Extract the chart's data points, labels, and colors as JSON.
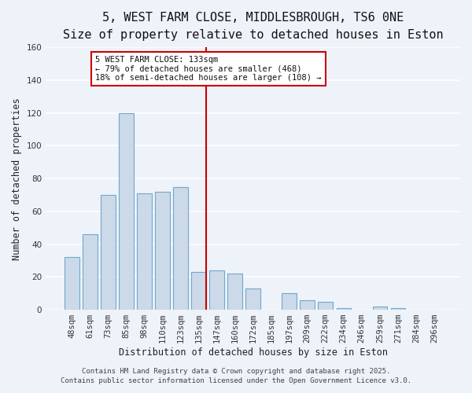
{
  "title": "5, WEST FARM CLOSE, MIDDLESBROUGH, TS6 0NE",
  "subtitle": "Size of property relative to detached houses in Eston",
  "xlabel": "Distribution of detached houses by size in Eston",
  "ylabel": "Number of detached properties",
  "categories": [
    "48sqm",
    "61sqm",
    "73sqm",
    "85sqm",
    "98sqm",
    "110sqm",
    "123sqm",
    "135sqm",
    "147sqm",
    "160sqm",
    "172sqm",
    "185sqm",
    "197sqm",
    "209sqm",
    "222sqm",
    "234sqm",
    "246sqm",
    "259sqm",
    "271sqm",
    "284sqm",
    "296sqm"
  ],
  "values": [
    32,
    46,
    70,
    120,
    71,
    72,
    75,
    23,
    24,
    22,
    13,
    0,
    10,
    6,
    5,
    1,
    0,
    2,
    1,
    0,
    0
  ],
  "bar_color": "#ccd9e8",
  "bar_edge_color": "#6fa8d0",
  "highlight_x_label": "135sqm",
  "highlight_line_color": "#cc0000",
  "annotation_title": "5 WEST FARM CLOSE: 133sqm",
  "annotation_line1": "← 79% of detached houses are smaller (468)",
  "annotation_line2": "18% of semi-detached houses are larger (108) →",
  "annotation_box_edge_color": "#cc0000",
  "ylim": [
    0,
    160
  ],
  "yticks": [
    0,
    20,
    40,
    60,
    80,
    100,
    120,
    140,
    160
  ],
  "footer1": "Contains HM Land Registry data © Crown copyright and database right 2025.",
  "footer2": "Contains public sector information licensed under the Open Government Licence v3.0.",
  "background_color": "#eef2f9",
  "grid_color": "#ffffff",
  "title_fontsize": 11,
  "subtitle_fontsize": 9.5,
  "axis_label_fontsize": 8.5,
  "tick_fontsize": 7.5,
  "annotation_fontsize": 7.5,
  "footer_fontsize": 6.5
}
